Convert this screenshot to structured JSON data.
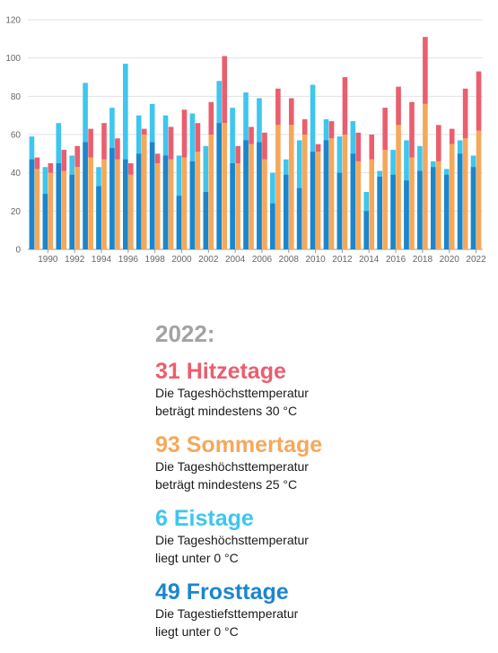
{
  "chart_data": {
    "type": "bar",
    "x": [
      1989,
      1990,
      1991,
      1992,
      1993,
      1994,
      1995,
      1996,
      1997,
      1998,
      1999,
      2000,
      2001,
      2002,
      2003,
      2004,
      2005,
      2006,
      2007,
      2008,
      2009,
      2010,
      2011,
      2012,
      2013,
      2014,
      2015,
      2016,
      2017,
      2018,
      2019,
      2020,
      2021,
      2022
    ],
    "x_tick_labels": [
      "1990",
      "1992",
      "1994",
      "1996",
      "1998",
      "2000",
      "2002",
      "2004",
      "2006",
      "2008",
      "2010",
      "2012",
      "2014",
      "2016",
      "2018",
      "2020",
      "2022"
    ],
    "y_ticks": [
      0,
      20,
      40,
      60,
      80,
      100,
      120
    ],
    "ylim": [
      0,
      120
    ],
    "series": [
      {
        "key": "eistage",
        "color": "#3ec6ee",
        "values": [
          59,
          43,
          66,
          49,
          87,
          43,
          74,
          97,
          70,
          76,
          70,
          49,
          71,
          54,
          88,
          74,
          82,
          79,
          40,
          47,
          57,
          86,
          68,
          59,
          67,
          30,
          41,
          52,
          57,
          54,
          46,
          42,
          57,
          49
        ]
      },
      {
        "key": "frosttage",
        "color": "#1c86cc",
        "values": [
          47,
          29,
          45,
          39,
          56,
          33,
          53,
          47,
          50,
          56,
          49,
          28,
          46,
          30,
          66,
          45,
          57,
          56,
          24,
          39,
          32,
          51,
          57,
          40,
          50,
          20,
          38,
          39,
          36,
          41,
          43,
          39,
          50,
          43
        ]
      },
      {
        "key": "hitzetage",
        "color": "#ea5e6e",
        "values": [
          6,
          5,
          11,
          11,
          15,
          19,
          11,
          6,
          3,
          5,
          17,
          25,
          15,
          17,
          35,
          9,
          9,
          14,
          19,
          14,
          8,
          4,
          9,
          30,
          15,
          13,
          22,
          20,
          29,
          35,
          19,
          8,
          26,
          31
        ]
      },
      {
        "key": "sommertage",
        "color": "#f6a85a",
        "values": [
          42,
          40,
          41,
          43,
          48,
          47,
          47,
          39,
          60,
          45,
          47,
          48,
          51,
          60,
          66,
          45,
          55,
          47,
          65,
          65,
          60,
          51,
          58,
          60,
          46,
          47,
          52,
          65,
          48,
          76,
          46,
          55,
          58,
          62
        ]
      }
    ]
  },
  "summary": {
    "year_label": "2022:",
    "items": [
      {
        "key": "hitzetage",
        "headline": "31 Hitzetage",
        "color": "#ea5e6e",
        "description": "Die Tageshöchsttemperatur\nbeträgt mindestens 30 °C"
      },
      {
        "key": "sommertage",
        "headline": "93 Sommertage",
        "color": "#f6a85a",
        "description": "Die Tageshöchsttemperatur\nbeträgt mindestens 25 °C"
      },
      {
        "key": "eistage",
        "headline": "6 Eistage",
        "color": "#3ec6ee",
        "description": "Die Tageshöchsttemperatur\nliegt unter 0 °C"
      },
      {
        "key": "frosttage",
        "headline": "49 Frosttage",
        "color": "#1c86cc",
        "description": "Die Tagestiefsttemperatur\nliegt unter 0 °C"
      }
    ]
  }
}
